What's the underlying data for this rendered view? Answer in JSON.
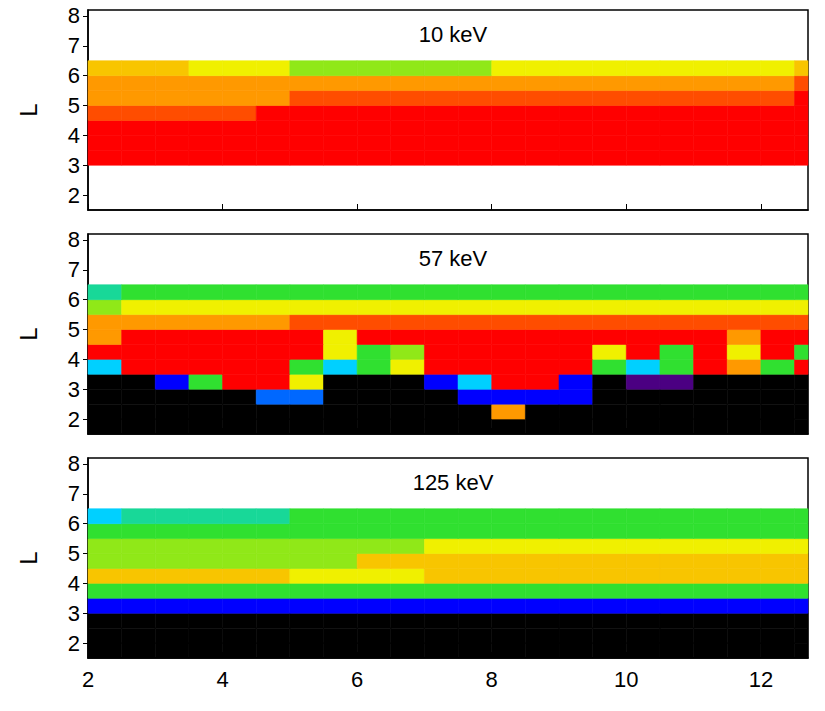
{
  "chart_data": [
    {
      "type": "heatmap",
      "title": "10 keV",
      "y_label": "L",
      "tick_labels": "y",
      "grid": false,
      "xlim": [
        2,
        12.7
      ],
      "xticks": [
        2,
        4,
        6,
        8,
        10,
        12
      ],
      "ylim": [
        1.5,
        8.2
      ],
      "yticks": [
        2,
        3,
        4,
        5,
        6,
        7,
        8
      ],
      "x_edges": [
        2,
        2.5,
        3,
        3.5,
        4,
        4.5,
        5,
        5.5,
        6,
        6.5,
        7,
        7.5,
        8,
        8.5,
        9,
        9.5,
        10,
        10.5,
        11,
        11.5,
        12,
        12.5,
        12.7
      ],
      "y_edges": [
        1.5,
        2,
        2.5,
        3,
        3.5,
        4,
        4.5,
        5,
        5.5,
        6,
        6.5
      ],
      "cells": [
        [
          null,
          null,
          null,
          null,
          null,
          null,
          null,
          null,
          null,
          null,
          null,
          null,
          null,
          null,
          null,
          null,
          null,
          null,
          null,
          null,
          null,
          null
        ],
        [
          null,
          null,
          null,
          null,
          null,
          null,
          null,
          null,
          null,
          null,
          null,
          null,
          null,
          null,
          null,
          null,
          null,
          null,
          null,
          null,
          null,
          null
        ],
        [
          null,
          null,
          null,
          null,
          null,
          null,
          null,
          null,
          null,
          null,
          null,
          null,
          null,
          null,
          null,
          null,
          null,
          null,
          null,
          null,
          null,
          null
        ],
        [
          7,
          7,
          7,
          7,
          7,
          7,
          7,
          7,
          7,
          7,
          7,
          7,
          7,
          7,
          7,
          7,
          7,
          7,
          7,
          7,
          7,
          7
        ],
        [
          7,
          7,
          7,
          7,
          7,
          7,
          7,
          7,
          7,
          7,
          7,
          7,
          7,
          7,
          7,
          7,
          7,
          7,
          7,
          7,
          7,
          7
        ],
        [
          7,
          7,
          7,
          7,
          7,
          7,
          7,
          7,
          7,
          7,
          7,
          7,
          7,
          7,
          7,
          7,
          7,
          7,
          7,
          7,
          7,
          7
        ],
        [
          6.5,
          6.5,
          6.5,
          6.5,
          6.5,
          7,
          7,
          7,
          7,
          7,
          7,
          7,
          7,
          7,
          7,
          7,
          7,
          7,
          7,
          7,
          7,
          7
        ],
        [
          6,
          6,
          6,
          6,
          6,
          6,
          6.5,
          6.5,
          6.5,
          6.5,
          6.5,
          6.5,
          6.5,
          6.5,
          6.5,
          6.5,
          6.5,
          6.5,
          6.5,
          6.5,
          6.5,
          7
        ],
        [
          6,
          6,
          6,
          6,
          6,
          6,
          6,
          6,
          6,
          6,
          6,
          6,
          6,
          6,
          6,
          6,
          6,
          6,
          6,
          6,
          6,
          6.5
        ],
        [
          5.5,
          5.5,
          5.5,
          5,
          5,
          5,
          4.5,
          4.5,
          4.5,
          4.5,
          4.5,
          4.5,
          5,
          5,
          5,
          5,
          5,
          5,
          5,
          5,
          5,
          5.5
        ]
      ]
    },
    {
      "type": "heatmap",
      "title": "57 keV",
      "y_label": "L",
      "tick_labels": "y",
      "grid": false,
      "xlim": [
        2,
        12.7
      ],
      "xticks": [
        2,
        4,
        6,
        8,
        10,
        12
      ],
      "ylim": [
        1.5,
        8.2
      ],
      "yticks": [
        2,
        3,
        4,
        5,
        6,
        7,
        8
      ],
      "x_edges": [
        2,
        2.5,
        3,
        3.5,
        4,
        4.5,
        5,
        5.5,
        6,
        6.5,
        7,
        7.5,
        8,
        8.5,
        9,
        9.5,
        10,
        10.5,
        11,
        11.5,
        12,
        12.5,
        12.7
      ],
      "y_edges": [
        1.5,
        2,
        2.5,
        3,
        3.5,
        4,
        4.5,
        5,
        5.5,
        6,
        6.5
      ],
      "cells": [
        [
          0,
          0,
          0,
          0,
          0,
          0,
          0,
          0,
          0,
          0,
          0,
          0,
          0,
          0,
          0,
          0,
          0,
          0,
          0,
          0,
          0,
          0
        ],
        [
          0,
          0,
          0,
          0,
          0,
          0,
          0,
          0,
          0,
          0,
          0,
          0,
          6,
          0,
          0,
          0,
          0,
          0,
          0,
          0,
          0,
          0
        ],
        [
          0,
          0,
          0,
          0,
          0,
          2.5,
          2.5,
          0,
          0,
          0,
          0,
          2,
          2,
          2,
          2,
          0,
          0,
          0,
          0,
          0,
          0,
          0
        ],
        [
          0,
          0,
          2,
          4,
          7,
          7,
          5,
          0,
          0,
          0,
          2,
          3,
          7,
          7,
          2,
          0,
          1,
          1,
          0,
          0,
          0,
          0
        ],
        [
          3,
          7,
          7,
          7,
          7,
          7,
          4,
          3,
          4,
          5,
          7,
          7,
          7,
          7,
          7,
          4,
          3,
          4,
          7,
          6,
          4,
          7
        ],
        [
          7,
          7,
          7,
          7,
          7,
          7,
          7,
          5,
          4,
          4.5,
          7,
          7,
          7,
          7,
          7,
          5,
          7,
          4,
          7,
          5,
          7,
          4
        ],
        [
          6,
          7,
          7,
          7,
          7,
          7,
          7,
          5,
          7,
          7,
          7,
          7,
          7,
          7,
          7,
          7,
          7,
          7,
          7,
          6,
          7,
          7
        ],
        [
          6,
          6,
          6,
          6,
          6,
          6,
          6.5,
          6.5,
          6.5,
          6.5,
          6.5,
          6.5,
          6.5,
          6.5,
          6.5,
          6.5,
          6.5,
          6.5,
          6.5,
          6.5,
          6.5,
          6.5
        ],
        [
          4.5,
          5,
          5,
          5,
          5,
          5,
          5,
          5,
          5,
          5,
          5,
          5,
          5,
          5,
          5,
          5,
          5,
          5,
          5,
          5,
          5,
          5
        ],
        [
          3.5,
          4,
          4,
          4,
          4,
          4,
          4,
          4,
          4,
          4,
          4,
          4,
          4,
          4,
          4,
          4,
          4,
          4,
          4,
          4,
          4,
          4
        ]
      ]
    },
    {
      "type": "heatmap",
      "title": "125 keV",
      "y_label": "L",
      "grid": false,
      "xlim": [
        2,
        12.7
      ],
      "xticks": [
        2,
        4,
        6,
        8,
        10,
        12
      ],
      "ylim": [
        1.5,
        8.2
      ],
      "yticks": [
        2,
        3,
        4,
        5,
        6,
        7,
        8
      ],
      "x_edges": [
        2,
        2.5,
        3,
        3.5,
        4,
        4.5,
        5,
        5.5,
        6,
        6.5,
        7,
        7.5,
        8,
        8.5,
        9,
        9.5,
        10,
        10.5,
        11,
        11.5,
        12,
        12.5,
        12.7
      ],
      "y_edges": [
        1.5,
        2,
        2.5,
        3,
        3.5,
        4,
        4.5,
        5,
        5.5,
        6,
        6.5
      ],
      "cells": [
        [
          0,
          0,
          0,
          0,
          0,
          0,
          0,
          0,
          0,
          0,
          0,
          0,
          0,
          0,
          0,
          0,
          0,
          0,
          0,
          0,
          0,
          0
        ],
        [
          0,
          0,
          0,
          0,
          0,
          0,
          0,
          0,
          0,
          0,
          0,
          0,
          0,
          0,
          0,
          0,
          0,
          0,
          0,
          0,
          0,
          0
        ],
        [
          0,
          0,
          0,
          0,
          0,
          0,
          0,
          0,
          0,
          0,
          0,
          0,
          0,
          0,
          0,
          0,
          0,
          0,
          0,
          0,
          0,
          0
        ],
        [
          2,
          2,
          2,
          2,
          2,
          2,
          2,
          2,
          2,
          2,
          2,
          2,
          2,
          2,
          2,
          2,
          2,
          2,
          2,
          2,
          2,
          2
        ],
        [
          4,
          4,
          4,
          4,
          4,
          4,
          4,
          4,
          4,
          4,
          4,
          4,
          4,
          4,
          4,
          4,
          4,
          4,
          4,
          4,
          4,
          4
        ],
        [
          5.5,
          5.5,
          5.5,
          5.5,
          5.5,
          5.5,
          5,
          5,
          5,
          5,
          5.5,
          5.5,
          5.5,
          5.5,
          5.5,
          5.5,
          5.5,
          5.5,
          5.5,
          5.5,
          5.5,
          5.5
        ],
        [
          4.5,
          4.5,
          4.5,
          4.5,
          4.5,
          4.5,
          4.5,
          4.5,
          5.5,
          5.5,
          5.5,
          5.5,
          5.5,
          5.5,
          5.5,
          5.5,
          5.5,
          5.5,
          5.5,
          5.5,
          5.5,
          5.5
        ],
        [
          4.5,
          4.5,
          4.5,
          4.5,
          4.5,
          4.5,
          4.5,
          4.5,
          4.5,
          4.5,
          5,
          5,
          5,
          5,
          5,
          5,
          5,
          5,
          5,
          5,
          5,
          5
        ],
        [
          4,
          4,
          4,
          4,
          4,
          4,
          4,
          4,
          4,
          4,
          4,
          4,
          4,
          4,
          4,
          4,
          4,
          4,
          4,
          4,
          4,
          4
        ],
        [
          3,
          3.5,
          3.5,
          3.5,
          3.5,
          3.5,
          4,
          4,
          4,
          4,
          4,
          4,
          4,
          4,
          4,
          4,
          4,
          4,
          4,
          4,
          4,
          4
        ]
      ]
    }
  ]
}
